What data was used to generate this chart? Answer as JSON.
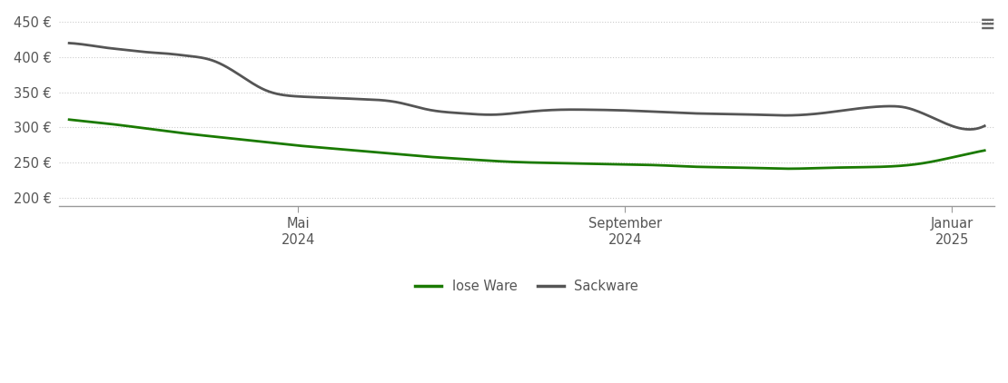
{
  "lose_ware_x": [
    0,
    0.3,
    0.7,
    1.2,
    1.8,
    2.5,
    3.0,
    3.5,
    4.0,
    4.5,
    5.0,
    5.5,
    6.0,
    6.5,
    7.0,
    7.5,
    8.0,
    8.5,
    9.0,
    9.5,
    10.0,
    10.5,
    11.0,
    11.5,
    12.0,
    12.5,
    13.0,
    13.5,
    14.0
  ],
  "lose_ware_y": [
    311,
    308,
    304,
    298,
    291,
    284,
    279,
    274,
    270,
    266,
    262,
    258,
    255,
    252,
    250,
    249,
    248,
    247,
    246,
    244,
    243,
    242,
    241,
    242,
    243,
    244,
    248,
    257,
    267
  ],
  "sackware_x": [
    0,
    0.3,
    0.6,
    0.9,
    1.2,
    1.5,
    1.8,
    2.2,
    2.6,
    3.0,
    3.5,
    4.0,
    4.5,
    5.0,
    5.5,
    6.0,
    6.5,
    7.0,
    7.5,
    8.0,
    8.5,
    9.0,
    9.5,
    10.0,
    10.5,
    11.0,
    11.5,
    12.0,
    12.5,
    12.8,
    13.0,
    13.2,
    13.5,
    14.0
  ],
  "sackware_y": [
    420,
    417,
    413,
    410,
    407,
    405,
    402,
    395,
    375,
    353,
    344,
    342,
    340,
    336,
    325,
    320,
    318,
    322,
    325,
    325,
    324,
    322,
    320,
    319,
    318,
    317,
    320,
    326,
    330,
    328,
    322,
    314,
    302,
    302
  ],
  "xtick_positions": [
    3.5,
    8.5,
    13.5
  ],
  "xtick_labels": [
    "Mai\n2024",
    "September\n2024",
    "Januar\n2025"
  ],
  "ytick_positions": [
    200,
    250,
    300,
    350,
    400,
    450
  ],
  "ytick_labels": [
    "200 €",
    "250 €",
    "300 €",
    "350 €",
    "400 €",
    "450 €"
  ],
  "ylim": [
    188,
    462
  ],
  "xlim": [
    -0.15,
    14.15
  ],
  "lose_ware_color": "#1a7a00",
  "sackware_color": "#555555",
  "grid_color": "#cccccc",
  "background_color": "#ffffff",
  "legend_lose_ware": "lose Ware",
  "legend_sackware": "Sackware",
  "line_width": 2.0,
  "axis_color": "#999999",
  "tick_color": "#555555",
  "label_fontsize": 10.5,
  "legend_fontsize": 10.5,
  "hamburger_color": "#666666"
}
